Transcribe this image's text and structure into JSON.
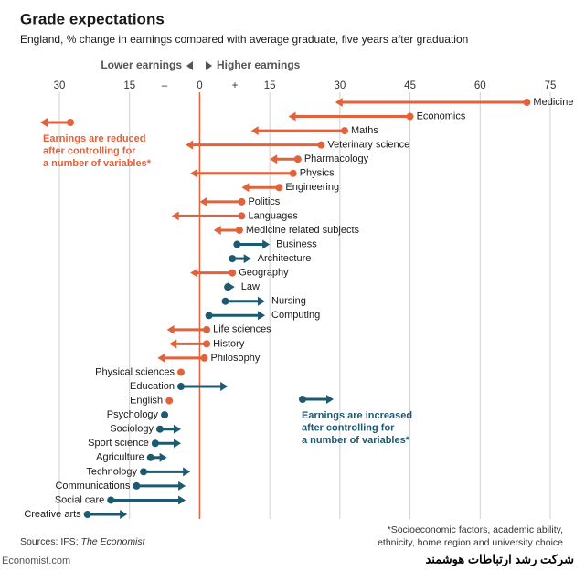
{
  "title": "Grade expectations",
  "subtitle": "England, % change in earnings compared with average graduate, five years after graduation",
  "chart_data": {
    "type": "arrow",
    "header_left": "Lower earnings",
    "header_right": "Higher earnings",
    "minus_sign": "–",
    "plus_sign": "+",
    "categories": [
      "Medicine",
      "Economics",
      "Maths",
      "Veterinary science",
      "Pharmacology",
      "Physics",
      "Engineering",
      "Politics",
      "Languages",
      "Medicine related subjects",
      "Business",
      "Architecture",
      "Geography",
      "Law",
      "Nursing",
      "Computing",
      "Life sciences",
      "History",
      "Philosophy",
      "Physical sciences",
      "Education",
      "English",
      "Psychology",
      "Sociology",
      "Sport science",
      "Agriculture",
      "Technology",
      "Communications",
      "Social care",
      "Creative arts"
    ],
    "raw": [
      70,
      45,
      31,
      26,
      21,
      20,
      17,
      9,
      9,
      8.5,
      8,
      7,
      7,
      6,
      5.5,
      2,
      1.5,
      1.5,
      1,
      -4,
      -4,
      -6.5,
      -7.5,
      -8.5,
      -9.5,
      -10.5,
      -12,
      -13.5,
      -19,
      -24
    ],
    "controlled": [
      29,
      19,
      11,
      -3,
      15,
      -2,
      9,
      0,
      -6,
      3,
      15,
      11,
      -2,
      7.5,
      14,
      14,
      -7,
      -6.5,
      -9,
      -4,
      6,
      -6.5,
      -7.5,
      -4,
      -4,
      -7,
      -2,
      -3,
      -3,
      -15.5
    ],
    "colors": [
      "#e2623b",
      "#e2623b",
      "#e2623b",
      "#e2623b",
      "#e2623b",
      "#e2623b",
      "#e2623b",
      "#e2623b",
      "#e2623b",
      "#e2623b",
      "#1d5a70",
      "#1d5a70",
      "#e2623b",
      "#1d5a70",
      "#1d5a70",
      "#1d5a70",
      "#e2623b",
      "#e2623b",
      "#e2623b",
      "#e2623b",
      "#1d5a70",
      "#e2623b",
      "#1d5a70",
      "#1d5a70",
      "#1d5a70",
      "#1d5a70",
      "#1d5a70",
      "#1d5a70",
      "#1d5a70",
      "#1d5a70"
    ],
    "xlim": [
      -30,
      75
    ],
    "xticks": [
      {
        "value": -30,
        "label": "30"
      },
      {
        "value": -15,
        "label": "15"
      },
      0,
      15,
      30,
      45,
      60,
      75
    ],
    "zero_color": "#e2623b",
    "note_reduced": [
      "Earnings are reduced",
      "after controlling for",
      "a number of variables*"
    ],
    "note_increased": [
      "Earnings are increased",
      "after controlling for",
      "a number of variables*"
    ]
  },
  "source": "Sources: IFS; ",
  "source_italic": "The Economist",
  "footnote": [
    "*Socioeconomic factors, academic ability,",
    "ethnicity, home region and university choice"
  ],
  "brand": "Economist.com",
  "watermark": "شرکت رشد ارتباطات هوشمند"
}
